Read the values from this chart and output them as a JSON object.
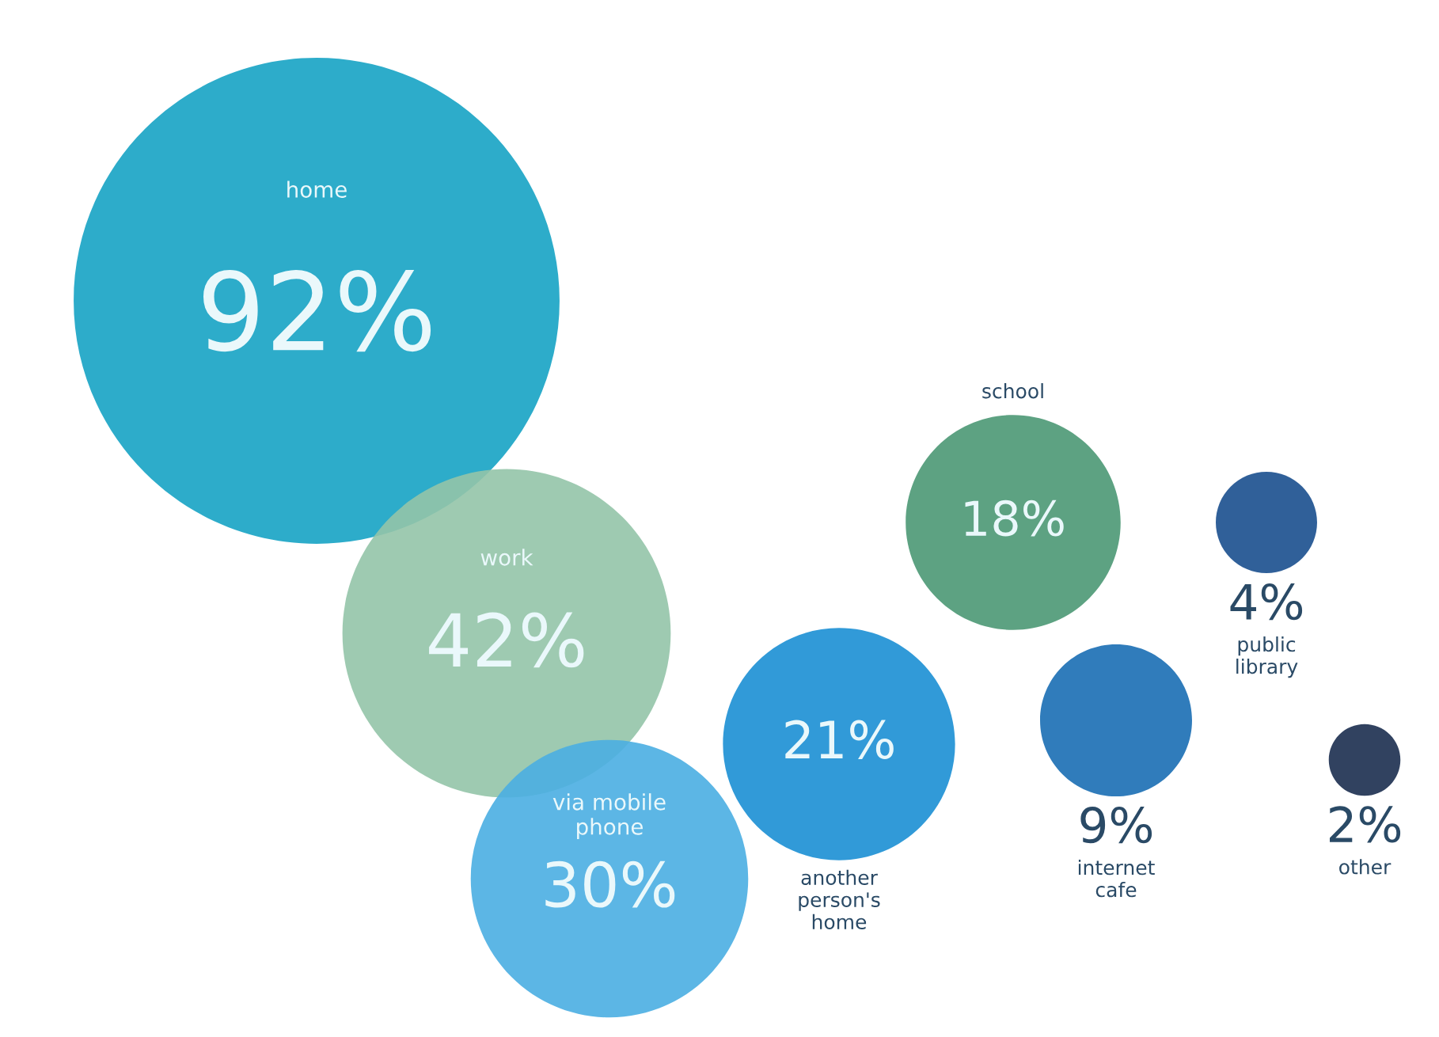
{
  "chart_data": {
    "type": "other",
    "categories": [
      "home",
      "work",
      "via mobile phone",
      "another person's home",
      "school",
      "internet cafe",
      "public library",
      "other"
    ],
    "values": [
      92,
      42,
      30,
      21,
      18,
      9,
      4,
      2
    ],
    "value_labels": [
      "92%",
      "42%",
      "30%",
      "21%",
      "18%",
      "9%",
      "4%",
      "2%"
    ],
    "colors": [
      "#16a3c4",
      "#93c4a8",
      "#4aaee2",
      "#1b8fd4",
      "#4b9874",
      "#1a6eb4",
      "#1a4f8e",
      "#1b2d4f"
    ]
  }
}
